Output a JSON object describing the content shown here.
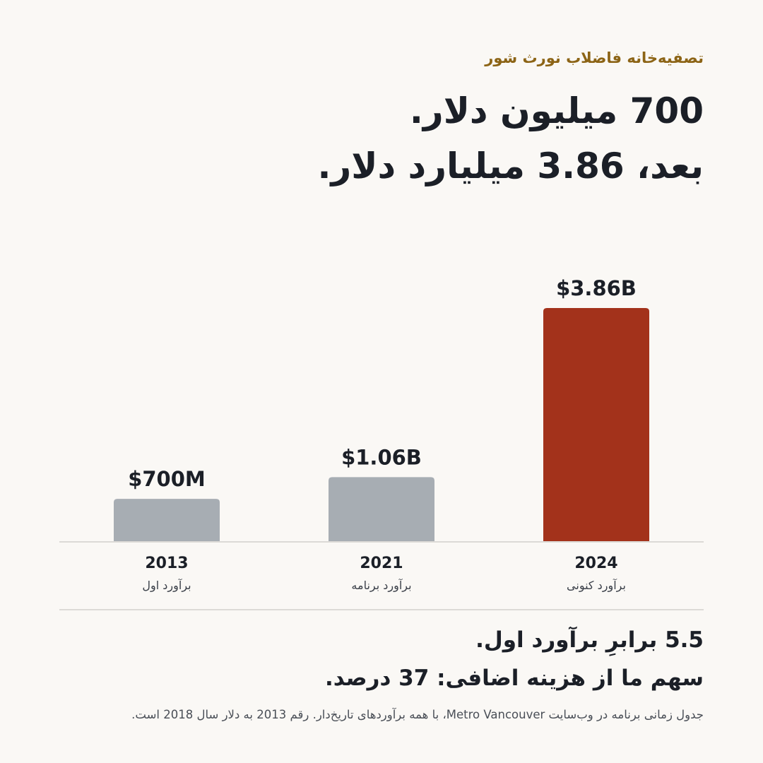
{
  "kicker": "تصفیه‌خانه فاضلاب نورث شور",
  "headline": {
    "line1": "700 میلیون دلار.",
    "line2": "بعد، 3.86 میلیارد دلار."
  },
  "colors": {
    "accent": "#a3321b",
    "muted": "#a7adb3",
    "kicker": "#8c6416"
  },
  "chart_data": {
    "type": "bar",
    "categories": [
      "2013",
      "2021",
      "2024"
    ],
    "sublabels": [
      "برآورد اول",
      "برآورد برنامه",
      "برآورد کنونی"
    ],
    "values": [
      0.7,
      1.06,
      3.86
    ],
    "value_labels": [
      "$700M",
      "$1.06B",
      "$3.86B"
    ],
    "unit": "billion USD",
    "ylim": [
      0,
      3.86
    ],
    "highlight": [
      false,
      false,
      true
    ],
    "grid": false,
    "axis_visible": false
  },
  "stats": {
    "line1": "5.5 برابرِ برآورد اول.",
    "line2": "سهم ما از هزینه اضافی: 37 درصد."
  },
  "source": "جدول زمانی برنامه در وب‌سایت Metro Vancouver، با همه برآوردهای تاریخ‌دار. رقم 2013 به دلار سال 2018 است."
}
